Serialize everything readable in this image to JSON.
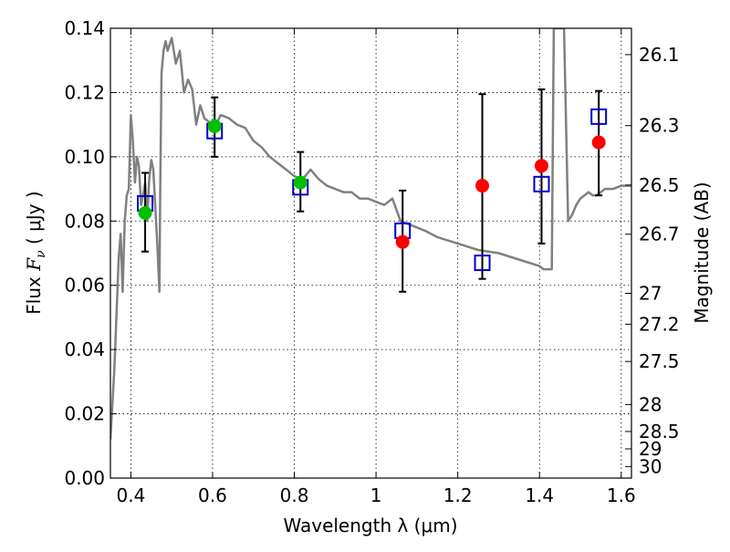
{
  "chart_data": {
    "type": "scatter",
    "xlabel": "Wavelength  λ (μm)",
    "ylabel_prefix": "Flux  ",
    "ylabel_symbol": "F",
    "ylabel_sub": "ν",
    "ylabel_suffix": "  ( μJy )",
    "y2label": "Magnitude (AB)",
    "xlim": [
      0.35,
      1.625
    ],
    "ylim": [
      0.0,
      0.14
    ],
    "x_ticks": [
      0.4,
      0.6,
      0.8,
      1.0,
      1.2,
      1.4,
      1.6
    ],
    "x_tick_labels": [
      "0.4",
      "0.6",
      "0.8",
      "1",
      "1.2",
      "1.4",
      "1.6"
    ],
    "y_ticks": [
      0.0,
      0.02,
      0.04,
      0.06,
      0.08,
      0.1,
      0.12,
      0.14
    ],
    "y_tick_labels": [
      "0.00",
      "0.02",
      "0.04",
      "0.06",
      "0.08",
      "0.10",
      "0.12",
      "0.14"
    ],
    "mag_ticks": [
      {
        "label": "26.1",
        "flux": 0.1318
      },
      {
        "label": "26.3",
        "flux": 0.1097
      },
      {
        "label": "26.5",
        "flux": 0.0912
      },
      {
        "label": "26.7",
        "flux": 0.0759
      },
      {
        "label": "27",
        "flux": 0.0575
      },
      {
        "label": "27.2",
        "flux": 0.0479
      },
      {
        "label": "27.5",
        "flux": 0.0363
      },
      {
        "label": "28",
        "flux": 0.0229
      },
      {
        "label": "28.5",
        "flux": 0.0145
      },
      {
        "label": "29",
        "flux": 0.0091
      },
      {
        "label": "30",
        "flux": 0.0036
      }
    ],
    "grid": true,
    "colors": {
      "model": "#808080",
      "model_boxes": "#0000cc",
      "green_points": "#00c000",
      "red_points": "#ff0000",
      "errorbars": "#000000"
    },
    "series": [
      {
        "style": "line",
        "x": [
          0.35,
          0.36,
          0.37,
          0.375,
          0.38,
          0.383,
          0.385,
          0.39,
          0.395,
          0.4,
          0.405,
          0.41,
          0.415,
          0.42,
          0.425,
          0.43,
          0.435,
          0.44,
          0.445,
          0.45,
          0.455,
          0.46,
          0.465,
          0.47,
          0.472,
          0.475,
          0.48,
          0.485,
          0.49,
          0.5,
          0.51,
          0.52,
          0.53,
          0.54,
          0.55,
          0.56,
          0.57,
          0.58,
          0.59,
          0.6,
          0.62,
          0.64,
          0.66,
          0.68,
          0.7,
          0.72,
          0.74,
          0.76,
          0.78,
          0.8,
          0.82,
          0.84,
          0.86,
          0.88,
          0.9,
          0.92,
          0.94,
          0.96,
          0.98,
          1.0,
          1.02,
          1.04,
          1.06,
          1.08,
          1.1,
          1.12,
          1.15,
          1.2,
          1.25,
          1.3,
          1.35,
          1.4,
          1.41,
          1.43,
          1.435,
          1.44,
          1.445,
          1.45,
          1.46,
          1.47,
          1.48,
          1.49,
          1.5,
          1.51,
          1.52,
          1.53,
          1.54,
          1.55,
          1.56,
          1.58,
          1.6,
          1.625
        ],
        "y": [
          0.012,
          0.035,
          0.068,
          0.076,
          0.058,
          0.072,
          0.08,
          0.088,
          0.09,
          0.113,
          0.105,
          0.092,
          0.1,
          0.097,
          0.085,
          0.088,
          0.092,
          0.08,
          0.093,
          0.099,
          0.096,
          0.084,
          0.072,
          0.058,
          0.09,
          0.126,
          0.133,
          0.136,
          0.133,
          0.137,
          0.129,
          0.133,
          0.12,
          0.124,
          0.121,
          0.11,
          0.116,
          0.112,
          0.111,
          0.108,
          0.113,
          0.112,
          0.11,
          0.109,
          0.105,
          0.103,
          0.1,
          0.098,
          0.096,
          0.094,
          0.093,
          0.096,
          0.093,
          0.091,
          0.09,
          0.089,
          0.089,
          0.087,
          0.087,
          0.086,
          0.085,
          0.087,
          0.08,
          0.079,
          0.078,
          0.077,
          0.075,
          0.073,
          0.071,
          0.07,
          0.068,
          0.066,
          0.065,
          0.065,
          0.14,
          0.14,
          0.14,
          0.14,
          0.14,
          0.08,
          0.082,
          0.085,
          0.087,
          0.088,
          0.089,
          0.088,
          0.088,
          0.089,
          0.09,
          0.09,
          0.091,
          0.091
        ]
      },
      {
        "style": "open-square",
        "x": [
          0.435,
          0.605,
          0.815,
          1.065,
          1.26,
          1.405,
          1.545
        ],
        "y": [
          0.0855,
          0.108,
          0.0905,
          0.077,
          0.067,
          0.0915,
          0.1125
        ]
      },
      {
        "style": "filled-circle",
        "group": "green",
        "x": [
          0.435,
          0.605,
          0.815
        ],
        "y": [
          0.0825,
          0.1095,
          0.092
        ],
        "yerr_low": [
          0.0705,
          0.1,
          0.083
        ],
        "yerr_high": [
          0.095,
          0.1185,
          0.1015
        ]
      },
      {
        "style": "filled-circle",
        "group": "red",
        "x": [
          1.065,
          1.26,
          1.405,
          1.545
        ],
        "y": [
          0.0735,
          0.091,
          0.0972,
          0.1045
        ],
        "yerr_low": [
          0.058,
          0.062,
          0.073,
          0.088
        ],
        "yerr_high": [
          0.0895,
          0.1195,
          0.121,
          0.1205
        ]
      }
    ]
  }
}
